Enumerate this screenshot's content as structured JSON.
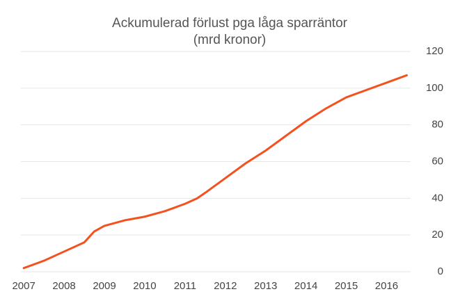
{
  "chart_data": {
    "type": "line",
    "title": "Ackumulerad förlust pga låga sparräntor",
    "subtitle": "(mrd kronor)",
    "x": [
      2007.0,
      2007.5,
      2008.0,
      2008.5,
      2008.75,
      2009.0,
      2009.5,
      2010.0,
      2010.5,
      2011.0,
      2011.3,
      2011.5,
      2012.0,
      2012.5,
      2013.0,
      2013.5,
      2014.0,
      2014.5,
      2015.0,
      2015.5,
      2016.0,
      2016.5
    ],
    "series": [
      {
        "name": "Ackumulerad förlust",
        "color": "#f4511e",
        "values": [
          2,
          6,
          11,
          16,
          22,
          25,
          28,
          30,
          33,
          37,
          40,
          43,
          51,
          59,
          66,
          74,
          82,
          89,
          95,
          99,
          103,
          107
        ]
      }
    ],
    "xlim": [
      2006.6,
      2016.7
    ],
    "xticks": [
      2007,
      2008,
      2009,
      2010,
      2011,
      2012,
      2013,
      2014,
      2015,
      2016
    ],
    "ylim": [
      0,
      120
    ],
    "yticks": [
      0,
      20,
      40,
      60,
      80,
      100,
      120
    ],
    "grid": true,
    "y_axis_side": "right"
  }
}
